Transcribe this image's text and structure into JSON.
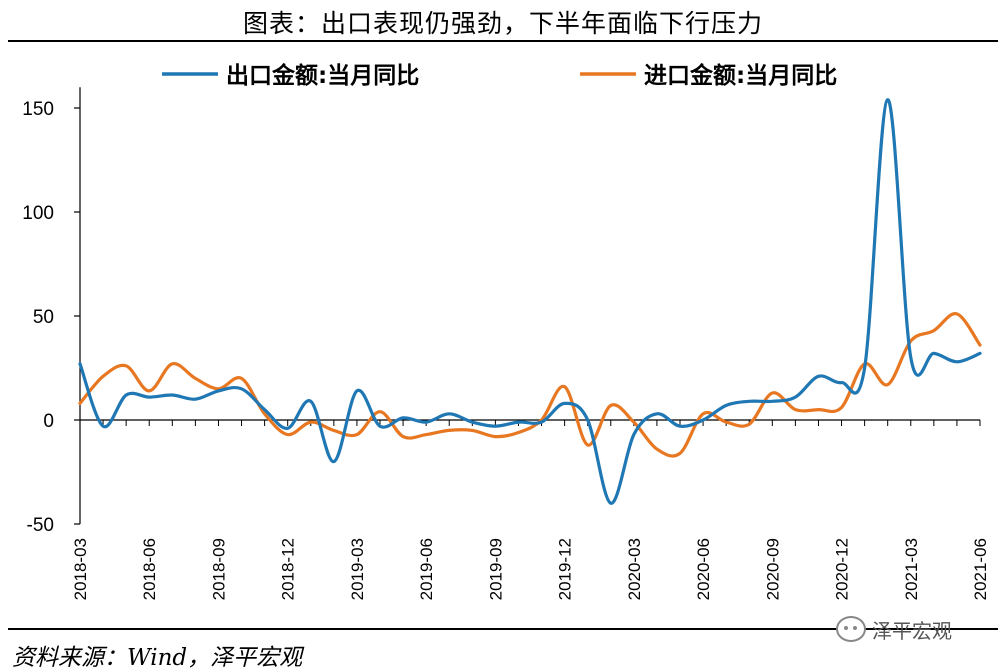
{
  "chart_data": {
    "type": "line",
    "title": "图表：出口表现仍强劲，下半年面临下行压力",
    "categories": [
      "2018-03",
      "2018-04",
      "2018-05",
      "2018-06",
      "2018-07",
      "2018-08",
      "2018-09",
      "2018-10",
      "2018-11",
      "2018-12",
      "2019-01",
      "2019-02",
      "2019-03",
      "2019-04",
      "2019-05",
      "2019-06",
      "2019-07",
      "2019-08",
      "2019-09",
      "2019-10",
      "2019-11",
      "2019-12",
      "2020-01",
      "2020-02",
      "2020-03",
      "2020-04",
      "2020-05",
      "2020-06",
      "2020-07",
      "2020-08",
      "2020-09",
      "2020-10",
      "2020-11",
      "2020-12",
      "2021-01",
      "2021-02",
      "2021-03",
      "2021-04",
      "2021-05",
      "2021-06"
    ],
    "tick_labels": [
      "2018-03",
      "2018-06",
      "2018-09",
      "2018-12",
      "2019-03",
      "2019-06",
      "2019-09",
      "2019-12",
      "2020-03",
      "2020-06",
      "2020-09",
      "2020-12",
      "2021-03",
      "2021-06"
    ],
    "series": [
      {
        "name": "出口金额:当月同比",
        "color": "#1f77b4",
        "values": [
          27,
          -3,
          12,
          11,
          12,
          10,
          14,
          15,
          5,
          -4,
          9,
          -20,
          14,
          -3,
          1,
          -1,
          3,
          -1,
          -3,
          -1,
          -1,
          8,
          0,
          -40,
          -7,
          3,
          -3,
          0,
          7,
          9,
          9,
          11,
          21,
          18,
          25,
          154,
          30,
          32,
          28,
          32
        ]
      },
      {
        "name": "进口金额:当月同比",
        "color": "#e87722",
        "values": [
          8,
          21,
          26,
          14,
          27,
          20,
          15,
          20,
          3,
          -7,
          -1,
          -5,
          -7,
          4,
          -8,
          -7,
          -5,
          -5,
          -8,
          -6,
          0,
          16,
          -12,
          7,
          -1,
          -14,
          -16,
          3,
          -1,
          -2,
          13,
          5,
          5,
          6,
          27,
          17,
          38,
          43,
          51,
          36
        ]
      }
    ],
    "yticks": [
      -50,
      0,
      50,
      100,
      150
    ],
    "ylim": [
      -50,
      160
    ],
    "legend_position": "top",
    "grid": false
  },
  "source_note": "资料来源：Wind，泽平宏观",
  "watermark": {
    "text": "泽平宏观",
    "icon": "wechat-icon"
  }
}
